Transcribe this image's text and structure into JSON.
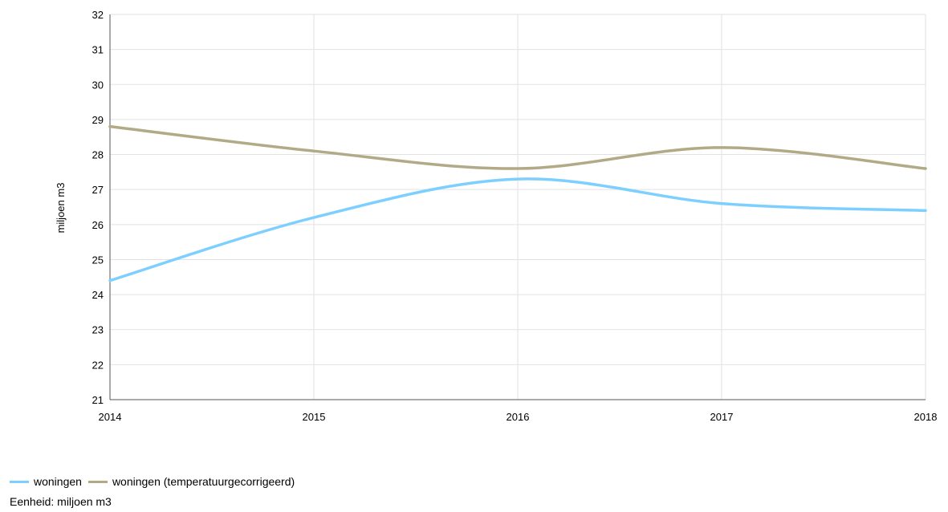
{
  "chart_data": {
    "type": "line",
    "title": "",
    "xlabel": "",
    "ylabel": "miljoen m3",
    "x": [
      2014,
      2015,
      2016,
      2017,
      2018
    ],
    "xlim": [
      2014,
      2018
    ],
    "ylim": [
      21,
      32
    ],
    "yticks": [
      21,
      22,
      23,
      24,
      25,
      26,
      27,
      28,
      29,
      30,
      31,
      32
    ],
    "grid": true,
    "legend": "bottom-left",
    "series": [
      {
        "name": "woningen",
        "color": "#7dcfff",
        "values": [
          24.4,
          26.2,
          27.3,
          26.6,
          26.4
        ]
      },
      {
        "name": "woningen (temperatuurgecorrigeerd)",
        "color": "#b2a987",
        "values": [
          28.8,
          28.1,
          27.6,
          28.2,
          27.6
        ]
      }
    ]
  },
  "footer": {
    "unit_text": "Eenheid: miljoen m3"
  }
}
